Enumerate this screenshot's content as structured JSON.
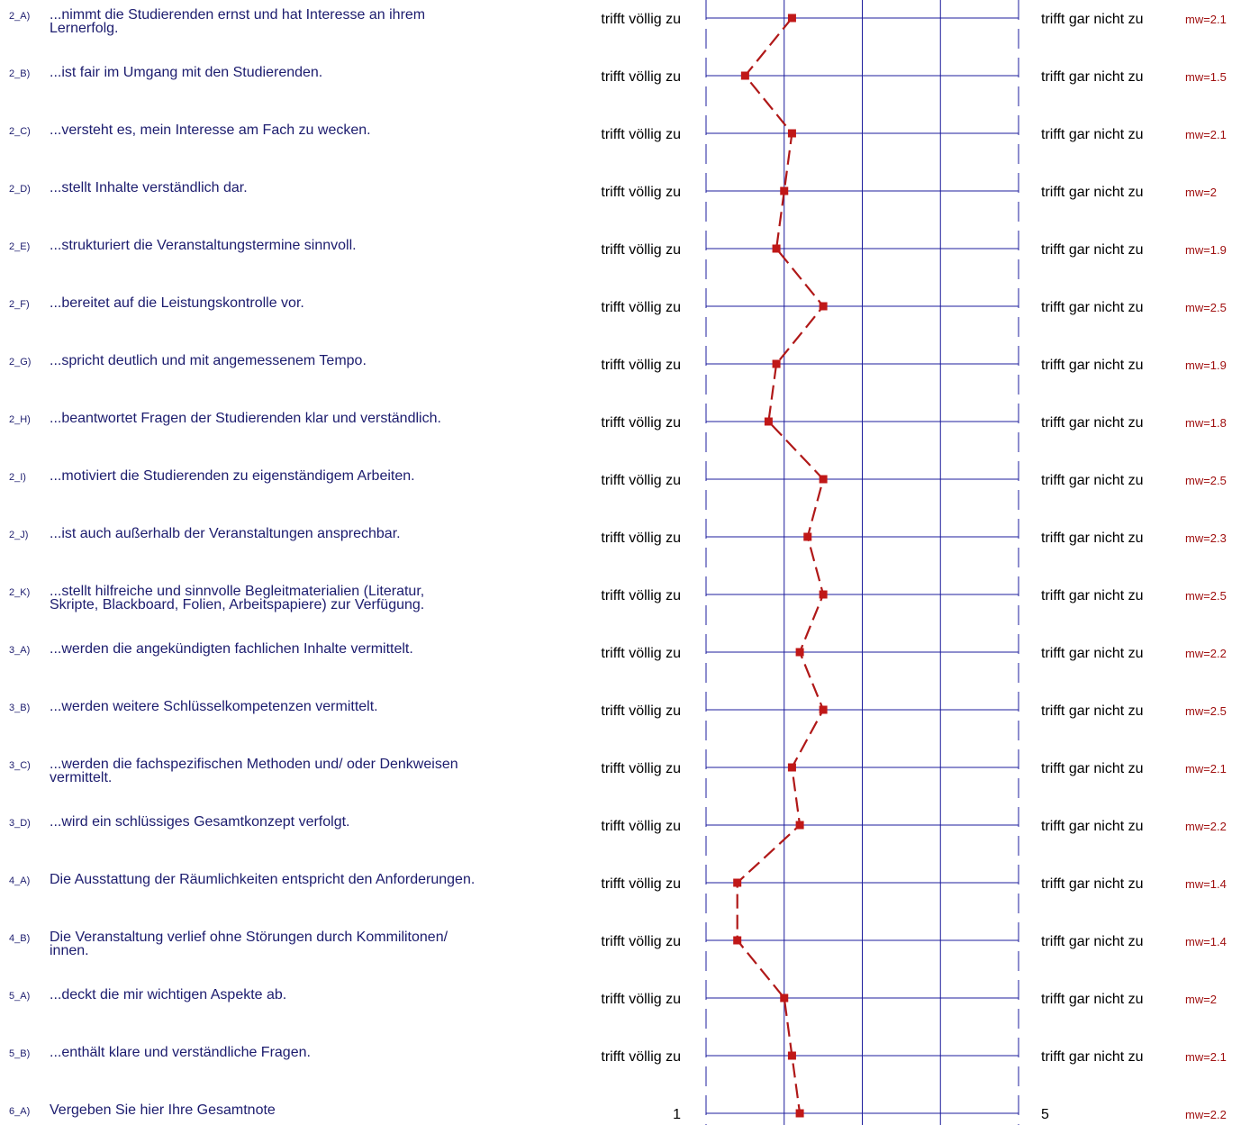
{
  "chart_data": {
    "type": "line",
    "scale_min": 1,
    "scale_max": 5,
    "colors": {
      "grid": "#1c1c9c",
      "line": "#b01818",
      "marker": "#c01818",
      "text": "#1c1c6e",
      "mw": "#a01010"
    },
    "items": [
      {
        "code": "2_A)",
        "text": [
          "...nimmt die Studierenden ernst und hat Interesse an ihrem",
          "Lernerfolg."
        ],
        "left": "trifft völlig zu",
        "right": "trifft gar nicht zu",
        "mw_label": "mw=2.1",
        "value": 2.1
      },
      {
        "code": "2_B)",
        "text": [
          "...ist fair im Umgang mit den Studierenden."
        ],
        "left": "trifft völlig zu",
        "right": "trifft gar nicht zu",
        "mw_label": "mw=1.5",
        "value": 1.5
      },
      {
        "code": "2_C)",
        "text": [
          "...versteht es, mein Interesse am Fach zu wecken."
        ],
        "left": "trifft völlig zu",
        "right": "trifft gar nicht zu",
        "mw_label": "mw=2.1",
        "value": 2.1
      },
      {
        "code": "2_D)",
        "text": [
          "...stellt Inhalte verständlich dar."
        ],
        "left": "trifft völlig zu",
        "right": "trifft gar nicht zu",
        "mw_label": "mw=2",
        "value": 2.0
      },
      {
        "code": "2_E)",
        "text": [
          "...strukturiert die Veranstaltungstermine sinnvoll."
        ],
        "left": "trifft völlig zu",
        "right": "trifft gar nicht zu",
        "mw_label": "mw=1.9",
        "value": 1.9
      },
      {
        "code": "2_F)",
        "text": [
          "...bereitet auf die Leistungskontrolle vor."
        ],
        "left": "trifft völlig zu",
        "right": "trifft gar nicht zu",
        "mw_label": "mw=2.5",
        "value": 2.5
      },
      {
        "code": "2_G)",
        "text": [
          "...spricht deutlich und mit angemessenem Tempo."
        ],
        "left": "trifft völlig zu",
        "right": "trifft gar nicht zu",
        "mw_label": "mw=1.9",
        "value": 1.9
      },
      {
        "code": "2_H)",
        "text": [
          "...beantwortet Fragen der Studierenden klar und verständlich."
        ],
        "left": "trifft völlig zu",
        "right": "trifft gar nicht zu",
        "mw_label": "mw=1.8",
        "value": 1.8
      },
      {
        "code": "2_I)",
        "text": [
          "...motiviert die Studierenden zu eigenständigem Arbeiten."
        ],
        "left": "trifft völlig zu",
        "right": "trifft gar nicht zu",
        "mw_label": "mw=2.5",
        "value": 2.5
      },
      {
        "code": "2_J)",
        "text": [
          "...ist auch außerhalb der Veranstaltungen ansprechbar."
        ],
        "left": "trifft völlig zu",
        "right": "trifft gar nicht zu",
        "mw_label": "mw=2.3",
        "value": 2.3
      },
      {
        "code": "2_K)",
        "text": [
          "...stellt hilfreiche und sinnvolle Begleitmaterialien (Literatur,",
          "Skripte, Blackboard, Folien, Arbeitspapiere) zur Verfügung."
        ],
        "left": "trifft völlig zu",
        "right": "trifft gar nicht zu",
        "mw_label": "mw=2.5",
        "value": 2.5
      },
      {
        "code": "3_A)",
        "text": [
          "...werden die angekündigten fachlichen Inhalte vermittelt."
        ],
        "left": "trifft völlig zu",
        "right": "trifft gar nicht zu",
        "mw_label": "mw=2.2",
        "value": 2.2
      },
      {
        "code": "3_B)",
        "text": [
          "...werden weitere Schlüsselkompetenzen vermittelt."
        ],
        "left": "trifft völlig zu",
        "right": "trifft gar nicht zu",
        "mw_label": "mw=2.5",
        "value": 2.5
      },
      {
        "code": "3_C)",
        "text": [
          "...werden die fachspezifischen Methoden und/ oder Denkweisen",
          "vermittelt."
        ],
        "left": "trifft völlig zu",
        "right": "trifft gar nicht zu",
        "mw_label": "mw=2.1",
        "value": 2.1
      },
      {
        "code": "3_D)",
        "text": [
          "...wird ein schlüssiges Gesamtkonzept verfolgt."
        ],
        "left": "trifft völlig zu",
        "right": "trifft gar nicht zu",
        "mw_label": "mw=2.2",
        "value": 2.2
      },
      {
        "code": "4_A)",
        "text": [
          "Die Ausstattung der Räumlichkeiten entspricht den Anforderungen."
        ],
        "left": "trifft völlig zu",
        "right": "trifft gar nicht zu",
        "mw_label": "mw=1.4",
        "value": 1.4
      },
      {
        "code": "4_B)",
        "text": [
          "Die Veranstaltung verlief ohne Störungen durch Kommilitonen/",
          "innen."
        ],
        "left": "trifft völlig zu",
        "right": "trifft gar nicht zu",
        "mw_label": "mw=1.4",
        "value": 1.4
      },
      {
        "code": "5_A)",
        "text": [
          "...deckt die mir wichtigen Aspekte ab."
        ],
        "left": "trifft völlig zu",
        "right": "trifft gar nicht zu",
        "mw_label": "mw=2",
        "value": 2.0
      },
      {
        "code": "5_B)",
        "text": [
          "...enthält klare und verständliche Fragen."
        ],
        "left": "trifft völlig zu",
        "right": "trifft gar nicht zu",
        "mw_label": "mw=2.1",
        "value": 2.1
      },
      {
        "code": "6_A)",
        "text": [
          "Vergeben Sie hier Ihre Gesamtnote"
        ],
        "left": "1",
        "right": "5",
        "mw_label": "mw=2.2",
        "value": 2.2
      }
    ]
  }
}
